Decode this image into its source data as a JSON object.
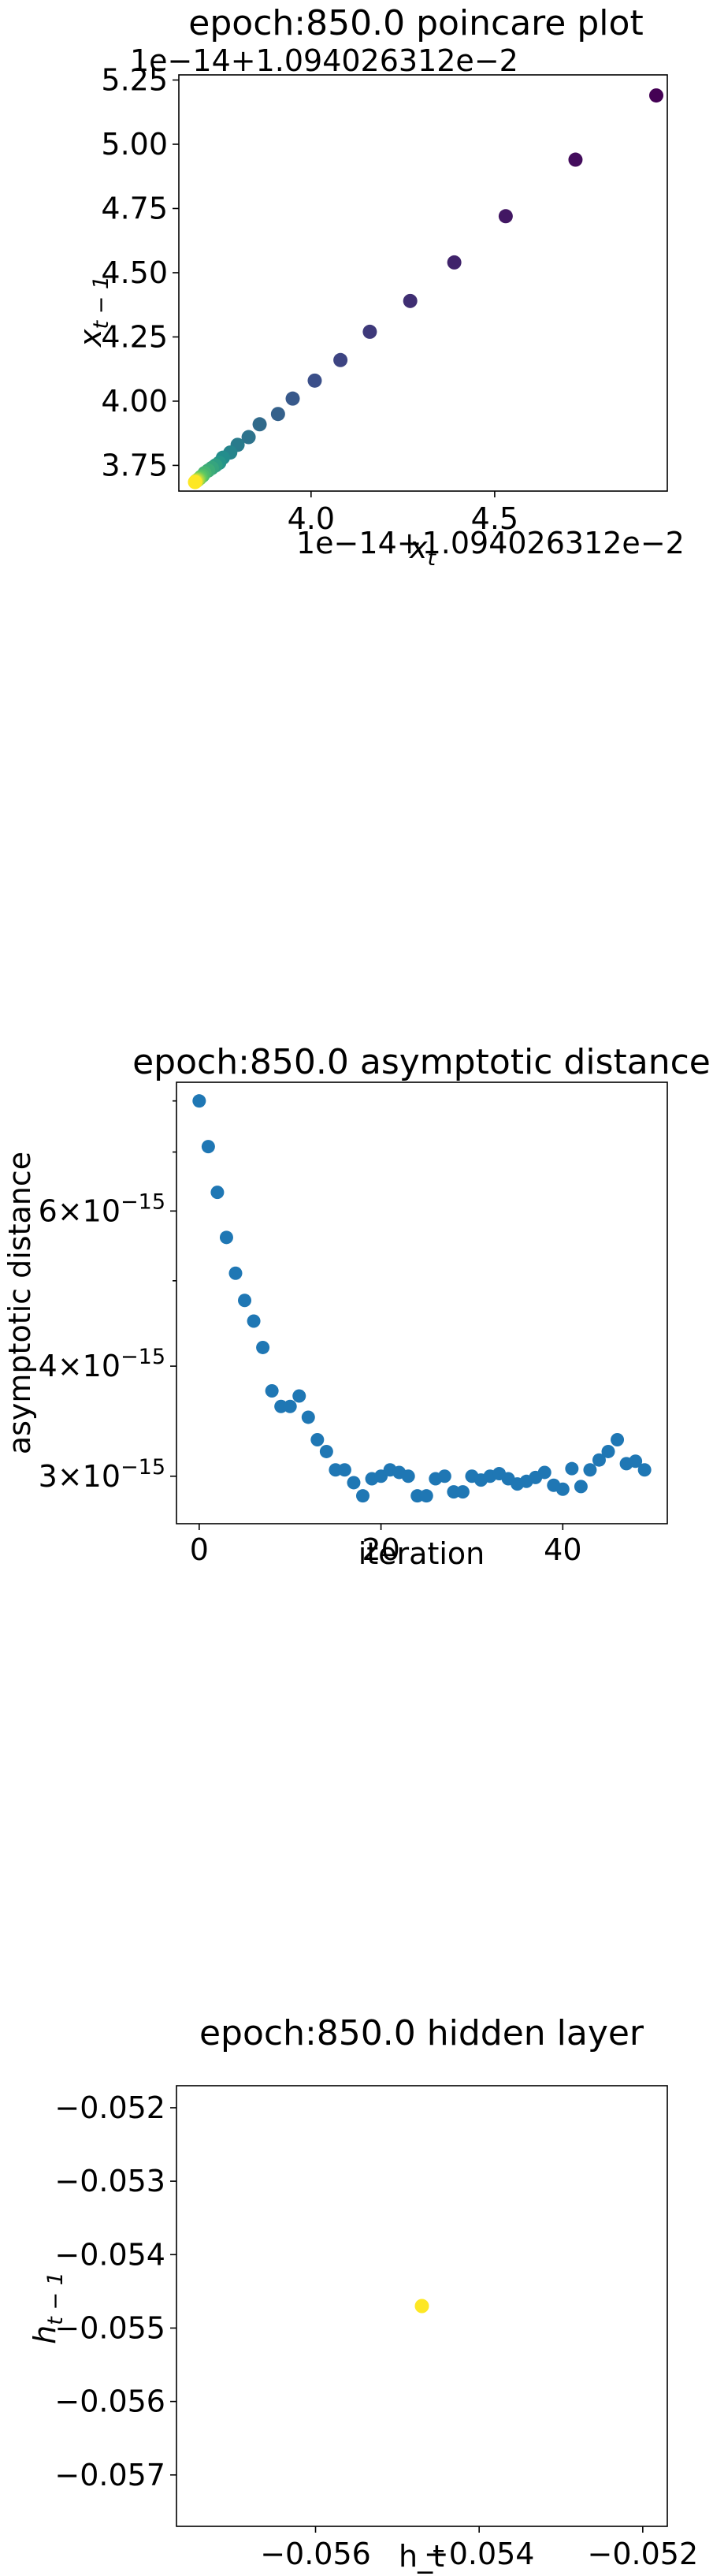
{
  "chart_data": [
    {
      "type": "scatter",
      "title": "epoch:850.0 poincare plot",
      "xlabel": "$x_t$",
      "ylabel": "$x_{t-1}$",
      "x_offset_text": "1e−14+1.094026312e−2",
      "y_offset_text": "1e−14+1.094026312e−2",
      "xlim": [
        3.64,
        4.97
      ],
      "ylim": [
        3.65,
        5.27
      ],
      "xticks": [
        4.0,
        4.5
      ],
      "xtick_labels": [
        "4.0",
        "4.5"
      ],
      "yticks": [
        3.75,
        4.0,
        4.25,
        4.5,
        4.75,
        5.0,
        5.25
      ],
      "ytick_labels": [
        "3.75",
        "4.00",
        "4.25",
        "4.50",
        "4.75",
        "5.00",
        "5.25"
      ],
      "colormap": "viridis",
      "colormap_colors": [
        "#440154",
        "#3b528b",
        "#21918c",
        "#5ec962",
        "#fde725"
      ],
      "points": [
        [
          4.94,
          5.19
        ],
        [
          4.72,
          4.94
        ],
        [
          4.53,
          4.72
        ],
        [
          4.39,
          4.54
        ],
        [
          4.27,
          4.39
        ],
        [
          4.16,
          4.27
        ],
        [
          4.08,
          4.16
        ],
        [
          4.01,
          4.08
        ],
        [
          3.95,
          4.01
        ],
        [
          3.91,
          3.95
        ],
        [
          3.86,
          3.91
        ],
        [
          3.83,
          3.86
        ],
        [
          3.8,
          3.83
        ],
        [
          3.78,
          3.8
        ],
        [
          3.76,
          3.78
        ],
        [
          3.75,
          3.76
        ],
        [
          3.74,
          3.75
        ],
        [
          3.73,
          3.74
        ],
        [
          3.72,
          3.73
        ],
        [
          3.71,
          3.72
        ],
        [
          3.705,
          3.71
        ],
        [
          3.7,
          3.705
        ],
        [
          3.697,
          3.7
        ],
        [
          3.694,
          3.697
        ],
        [
          3.692,
          3.694
        ],
        [
          3.69,
          3.692
        ],
        [
          3.688,
          3.69
        ],
        [
          3.686,
          3.688
        ],
        [
          3.685,
          3.686
        ],
        [
          3.684,
          3.685
        ]
      ]
    },
    {
      "type": "scatter",
      "title": "epoch:850.0 asymptotic distance",
      "xlabel": "iteration",
      "ylabel": "asymptotic distance",
      "yscale": "log",
      "xlim": [
        -2.5,
        51.5
      ],
      "ylim": [
        2.65e-15,
        8.4e-15
      ],
      "xticks": [
        0,
        20,
        40
      ],
      "xtick_labels": [
        "0",
        "20",
        "40"
      ],
      "yticks": [
        3e-15,
        4e-15,
        6e-15
      ],
      "ytick_labels": [
        [
          "3",
          "−15"
        ],
        [
          "4",
          "−15"
        ],
        [
          "6",
          "−15"
        ]
      ],
      "yticks_minor": [
        5e-15,
        7e-15,
        8e-15
      ],
      "tick_mult_text": "×10",
      "color": "#1f77b4",
      "x": [
        0,
        1,
        2,
        3,
        4,
        5,
        6,
        7,
        8,
        9,
        10,
        11,
        12,
        13,
        14,
        15,
        16,
        17,
        18,
        19,
        20,
        21,
        22,
        23,
        24,
        25,
        26,
        27,
        28,
        29,
        30,
        31,
        32,
        33,
        34,
        35,
        36,
        37,
        38,
        39,
        40,
        41,
        42,
        43,
        44,
        45,
        46,
        47,
        48,
        49
      ],
      "y": [
        8e-15,
        7.1e-15,
        6.3e-15,
        5.6e-15,
        5.1e-15,
        4.75e-15,
        4.5e-15,
        4.2e-15,
        3.75e-15,
        3.6e-15,
        3.6e-15,
        3.7e-15,
        3.5e-15,
        3.3e-15,
        3.2e-15,
        3.05e-15,
        3.05e-15,
        2.95e-15,
        2.85e-15,
        2.98e-15,
        3e-15,
        3.05e-15,
        3.03e-15,
        3e-15,
        2.85e-15,
        2.85e-15,
        2.98e-15,
        3e-15,
        2.88e-15,
        2.88e-15,
        3e-15,
        2.97e-15,
        3e-15,
        3.02e-15,
        2.98e-15,
        2.94e-15,
        2.96e-15,
        2.99e-15,
        3.03e-15,
        2.93e-15,
        2.9e-15,
        3.06e-15,
        2.92e-15,
        3.05e-15,
        3.13e-15,
        3.2e-15,
        3.3e-15,
        3.1e-15,
        3.12e-15,
        3.05e-15
      ]
    },
    {
      "type": "scatter",
      "title": "epoch:850.0 hidden layer",
      "xlabel": "h_t",
      "ylabel": "$h_{t-1}$",
      "xlim": [
        -0.0577,
        -0.0517
      ],
      "ylim": [
        -0.0577,
        -0.0517
      ],
      "xticks": [
        -0.056,
        -0.054,
        -0.052
      ],
      "xtick_labels": [
        "−0.056",
        "−0.054",
        "−0.052"
      ],
      "yticks": [
        -0.052,
        -0.053,
        -0.054,
        -0.055,
        -0.056,
        -0.057
      ],
      "ytick_labels": [
        "−0.052",
        "−0.053",
        "−0.054",
        "−0.055",
        "−0.056",
        "−0.057"
      ],
      "color": "#fde725",
      "points": [
        [
          -0.0547,
          -0.0547
        ]
      ]
    }
  ]
}
